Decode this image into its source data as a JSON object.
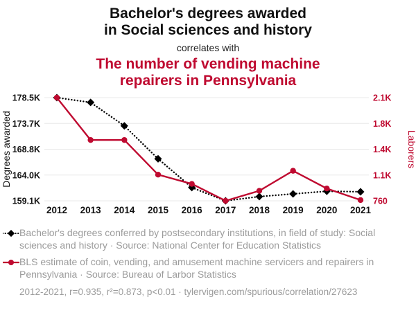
{
  "colors": {
    "accent_red": "#bf0a30",
    "black": "#000000",
    "legend_gray": "#9b9b9b",
    "gridline": "#e8e8e8"
  },
  "header": {
    "title_line1": "Bachelor's degrees awarded",
    "title_line2": "in Social sciences and history",
    "connector": "correlates with",
    "subtitle_line1": "The number of vending machine",
    "subtitle_line2": "repairers in Pennsylvania"
  },
  "chart_data": {
    "type": "line",
    "x": [
      2012,
      2013,
      2014,
      2015,
      2016,
      2017,
      2018,
      2019,
      2020,
      2021
    ],
    "left_axis": {
      "label": "Degrees awarded",
      "ticks": [
        "178.5K",
        "173.7K",
        "168.8K",
        "164.0K",
        "159.1K"
      ],
      "range": [
        159100,
        178500
      ]
    },
    "right_axis": {
      "label": "Laborers",
      "ticks": [
        "2.1K",
        "1.8K",
        "1.4K",
        "1.1K",
        "760"
      ],
      "range": [
        760,
        2100
      ]
    },
    "series": [
      {
        "name": "bachelors-degrees",
        "axis": "left",
        "color": "#000000",
        "marker": "diamond",
        "line_style": "dotted",
        "stroke_width": 2.4,
        "dash": "0.1 4.2",
        "values": [
          178500,
          177600,
          173200,
          167000,
          161600,
          159100,
          159900,
          160400,
          160900,
          160800
        ]
      },
      {
        "name": "vending-repairers",
        "axis": "right",
        "color": "#bf0a30",
        "marker": "circle",
        "line_style": "solid",
        "stroke_width": 2.4,
        "values": [
          2100,
          1550,
          1550,
          1100,
          980,
          760,
          890,
          1150,
          920,
          770
        ]
      }
    ],
    "grid": "horizontal",
    "legend_position": "below"
  },
  "legend": {
    "item1": "Bachelor's degrees conferred by postsecondary institutions, in field of study: Social sciences and history · Source: National Center for Education Statistics",
    "item2": "BLS estimate of coin, vending, and amusement machine servicers and repairers in Pennsylvania · Source: Bureau of Larbor Statistics"
  },
  "footer": {
    "stats": "2012-2021, r=0.935, r²=0.873, p<0.01 · tylervigen.com/spurious/correlation/27623"
  }
}
